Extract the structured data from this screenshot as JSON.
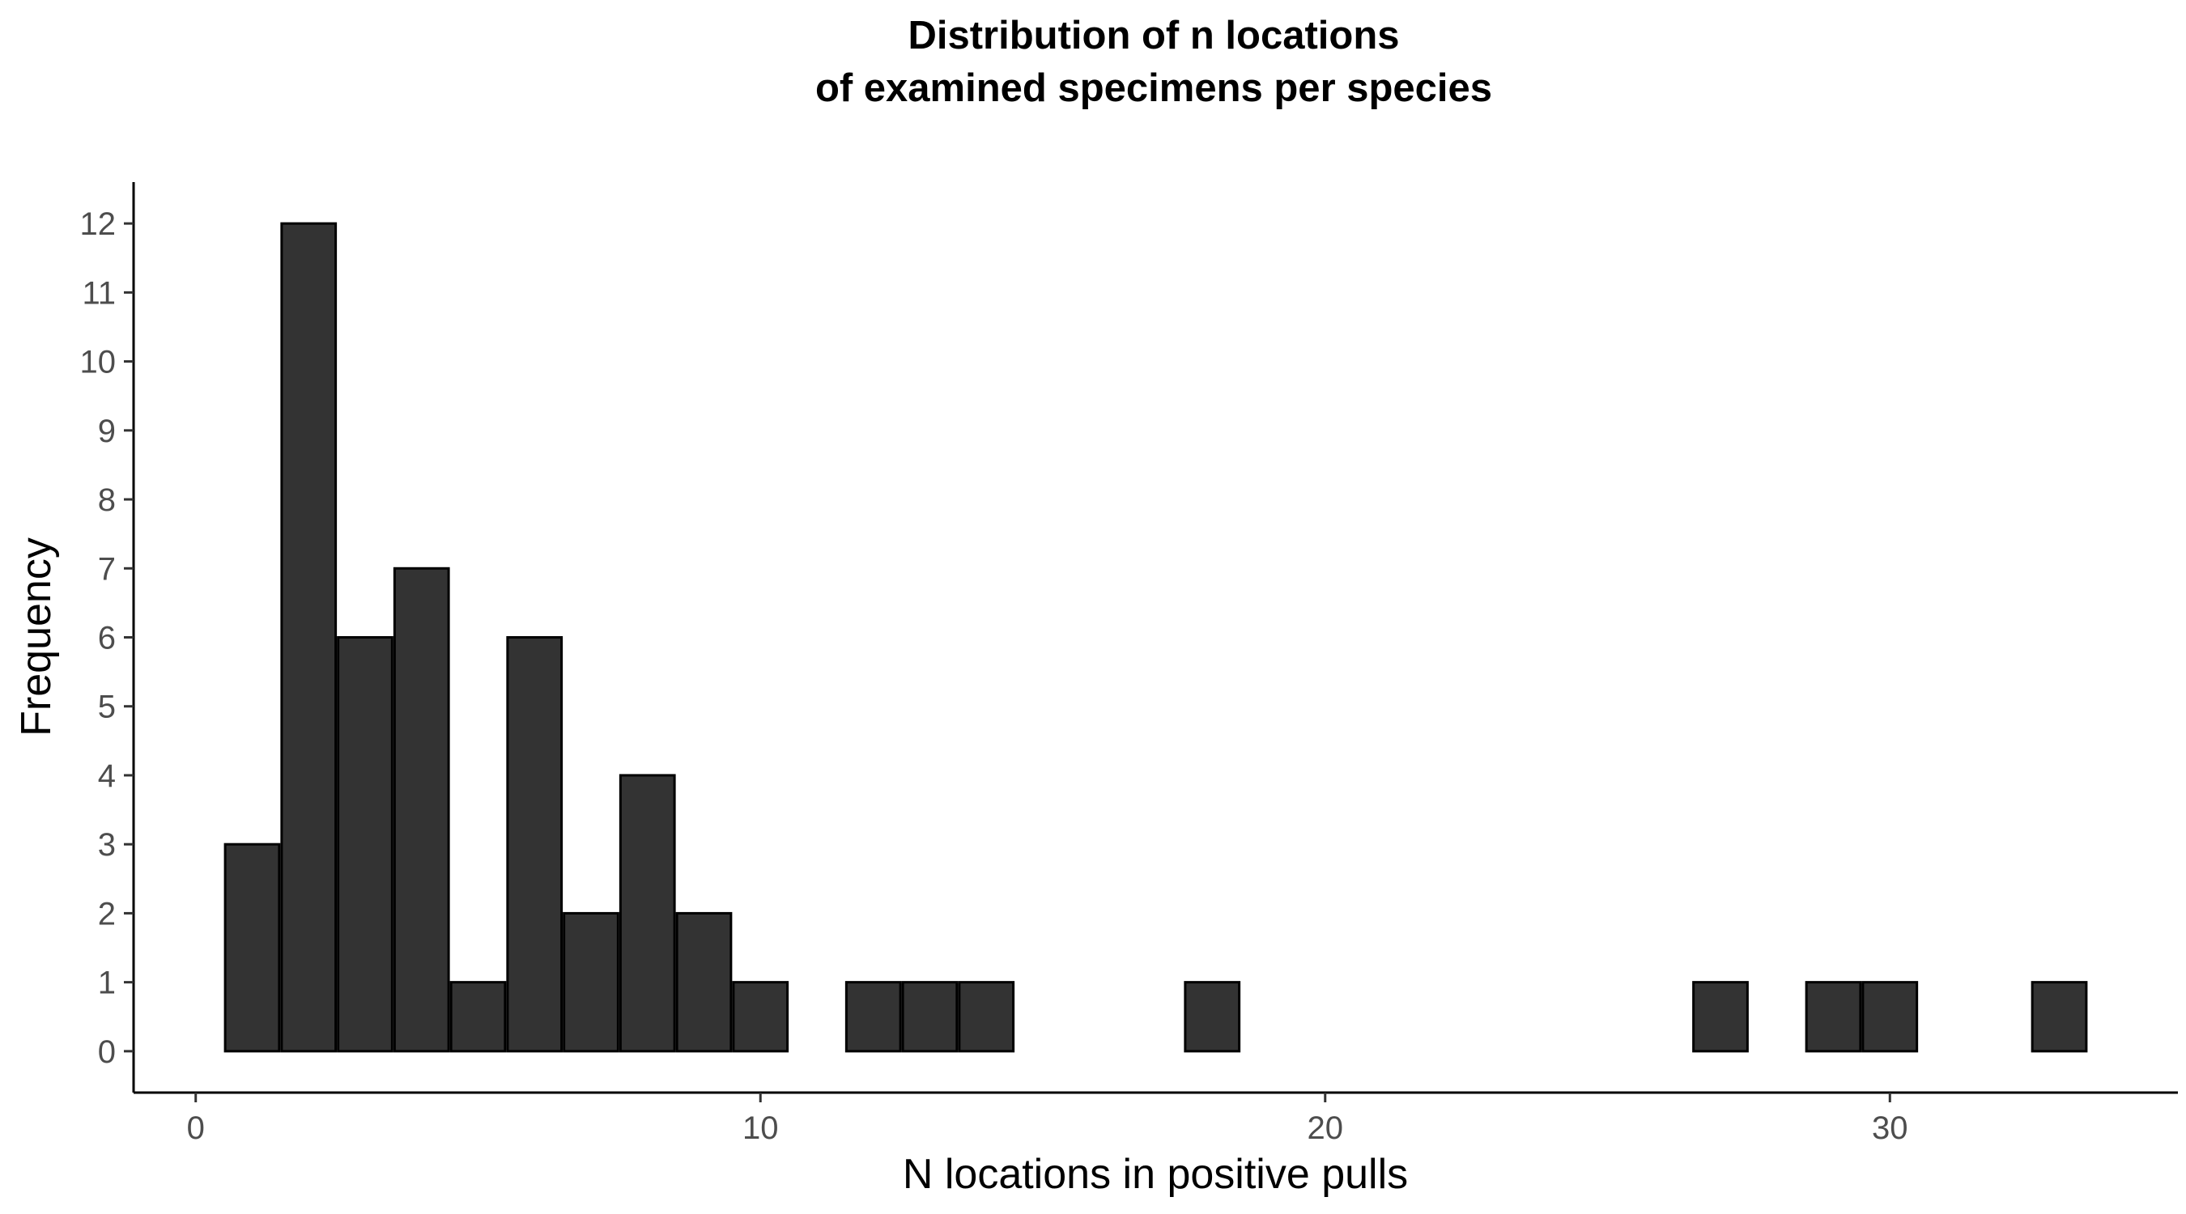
{
  "chart_data": {
    "type": "bar",
    "title": "Distribution of n locations",
    "subtitle": "of examined specimens per species",
    "xlabel": "N locations in positive pulls",
    "ylabel": "Frequency",
    "x_ticks": [
      0,
      10,
      20,
      30
    ],
    "y_ticks": [
      0,
      1,
      2,
      3,
      4,
      5,
      6,
      7,
      8,
      9,
      10,
      11,
      12
    ],
    "xlim": [
      -1.1,
      35.1
    ],
    "ylim": [
      -0.6,
      12.6
    ],
    "bin_width": 1,
    "grid": false,
    "bar_color": "#333333",
    "bar_edge_color": "#000000",
    "x": [
      1,
      2,
      3,
      4,
      5,
      6,
      7,
      8,
      9,
      10,
      12,
      13,
      14,
      18,
      27,
      29,
      30,
      33
    ],
    "values": [
      3,
      12,
      6,
      7,
      1,
      6,
      2,
      4,
      2,
      1,
      1,
      1,
      1,
      1,
      1,
      1,
      1,
      1
    ]
  }
}
